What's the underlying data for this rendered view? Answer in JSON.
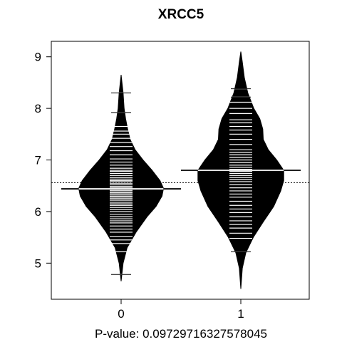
{
  "chart_data": {
    "type": "beanplot",
    "title": "XRCC5",
    "xlabel": "P-value: 0.09729716327578045",
    "ylabel": "",
    "categories": [
      "0",
      "1"
    ],
    "yticks": [
      5,
      6,
      7,
      8,
      9
    ],
    "ylim": [
      4.3,
      9.3
    ],
    "overall_mean": 6.56,
    "groups": [
      {
        "category": "0",
        "mean": 6.44,
        "min": 4.65,
        "max": 8.65,
        "density": [
          [
            4.65,
            0.0
          ],
          [
            5.0,
            0.04
          ],
          [
            5.3,
            0.12
          ],
          [
            5.6,
            0.3
          ],
          [
            5.9,
            0.52
          ],
          [
            6.1,
            0.7
          ],
          [
            6.3,
            0.82
          ],
          [
            6.45,
            0.85
          ],
          [
            6.6,
            0.78
          ],
          [
            6.8,
            0.62
          ],
          [
            7.0,
            0.44
          ],
          [
            7.2,
            0.28
          ],
          [
            7.4,
            0.18
          ],
          [
            7.6,
            0.13
          ],
          [
            7.8,
            0.09
          ],
          [
            8.0,
            0.06
          ],
          [
            8.3,
            0.04
          ],
          [
            8.65,
            0.0
          ]
        ],
        "points": [
          4.78,
          5.22,
          5.38,
          5.45,
          5.52,
          5.6,
          5.66,
          5.72,
          5.78,
          5.82,
          5.86,
          5.9,
          5.95,
          6.0,
          6.04,
          6.08,
          6.12,
          6.15,
          6.18,
          6.22,
          6.25,
          6.28,
          6.3,
          6.33,
          6.36,
          6.38,
          6.41,
          6.44,
          6.46,
          6.49,
          6.52,
          6.55,
          6.58,
          6.6,
          6.63,
          6.66,
          6.7,
          6.74,
          6.78,
          6.8,
          6.84,
          6.9,
          6.96,
          7.02,
          7.1,
          7.18,
          7.26,
          7.34,
          7.42,
          7.5,
          7.56,
          7.65,
          7.92,
          8.3
        ]
      },
      {
        "category": "1",
        "mean": 6.8,
        "min": 4.5,
        "max": 9.1,
        "density": [
          [
            4.5,
            0.0
          ],
          [
            4.9,
            0.03
          ],
          [
            5.2,
            0.1
          ],
          [
            5.5,
            0.25
          ],
          [
            5.8,
            0.45
          ],
          [
            6.1,
            0.66
          ],
          [
            6.4,
            0.8
          ],
          [
            6.6,
            0.86
          ],
          [
            6.8,
            0.86
          ],
          [
            7.0,
            0.72
          ],
          [
            7.2,
            0.55
          ],
          [
            7.4,
            0.45
          ],
          [
            7.6,
            0.44
          ],
          [
            7.8,
            0.38
          ],
          [
            8.0,
            0.26
          ],
          [
            8.3,
            0.14
          ],
          [
            8.6,
            0.07
          ],
          [
            8.9,
            0.03
          ],
          [
            9.1,
            0.0
          ]
        ],
        "points": [
          5.22,
          5.48,
          5.58,
          5.68,
          5.75,
          5.82,
          5.9,
          5.98,
          6.05,
          6.12,
          6.2,
          6.28,
          6.34,
          6.4,
          6.46,
          6.52,
          6.58,
          6.62,
          6.66,
          6.7,
          6.74,
          6.78,
          6.82,
          6.86,
          6.9,
          6.95,
          7.0,
          7.05,
          7.1,
          7.15,
          7.2,
          7.3,
          7.4,
          7.5,
          7.58,
          7.65,
          7.72,
          7.78,
          7.9,
          8.0,
          8.12,
          8.22,
          8.38
        ]
      }
    ]
  }
}
